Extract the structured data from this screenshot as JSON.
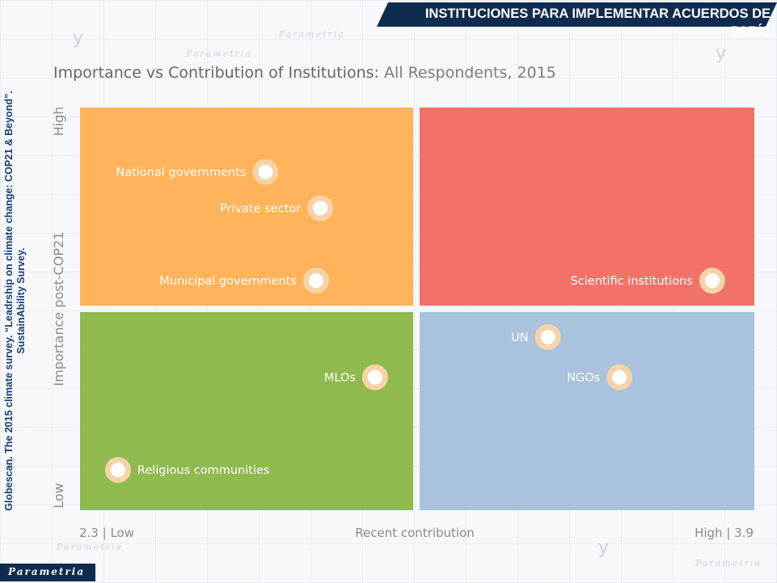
{
  "header": {
    "title": "INSTITUCIONES  PARA IMPLEMENTAR ACUERDOS DE PARÍS"
  },
  "source": "Globescan. The 2015 climate survey. “Leadrship on climate change: COP21 & Beyond”. SustainAbility Survey.",
  "logo": {
    "text": "Parametria"
  },
  "colors": {
    "q_top_left": "#ffb35a",
    "q_top_right": "#f27268",
    "q_bottom_left": "#8fba4e",
    "q_bottom_right": "#a9c2dd",
    "marker_outer": "#f7d3a8",
    "marker_inner": "#ffffff"
  },
  "chart_data": {
    "type": "scatter",
    "title": "Importance vs Contribution of Institutions:",
    "subtitle": "All Respondents, 2015",
    "xlabel": "Recent contribution",
    "ylabel": "Importance post-COP21",
    "x_low_label": "2.3 | Low",
    "x_high_label": "High | 3.9",
    "y_low_label": "Low",
    "y_high_label": "High",
    "xlim": [
      2.3,
      3.9
    ],
    "ylim_normalized": [
      0,
      1
    ],
    "points": [
      {
        "label": "National governments",
        "x": 2.74,
        "y": 0.84,
        "label_side": "left"
      },
      {
        "label": "Private sector",
        "x": 2.87,
        "y": 0.75,
        "label_side": "left"
      },
      {
        "label": "Municipal governments",
        "x": 2.86,
        "y": 0.57,
        "label_side": "left"
      },
      {
        "label": "Scientific institutions",
        "x": 3.8,
        "y": 0.57,
        "label_side": "left"
      },
      {
        "label": "UN",
        "x": 3.41,
        "y": 0.43,
        "label_side": "left"
      },
      {
        "label": "NGOs",
        "x": 3.58,
        "y": 0.33,
        "label_side": "left"
      },
      {
        "label": "MLOs",
        "x": 3.0,
        "y": 0.33,
        "label_side": "left"
      },
      {
        "label": "Religious communities",
        "x": 2.39,
        "y": 0.1,
        "label_side": "right"
      }
    ],
    "grid": false,
    "legend": "none"
  }
}
